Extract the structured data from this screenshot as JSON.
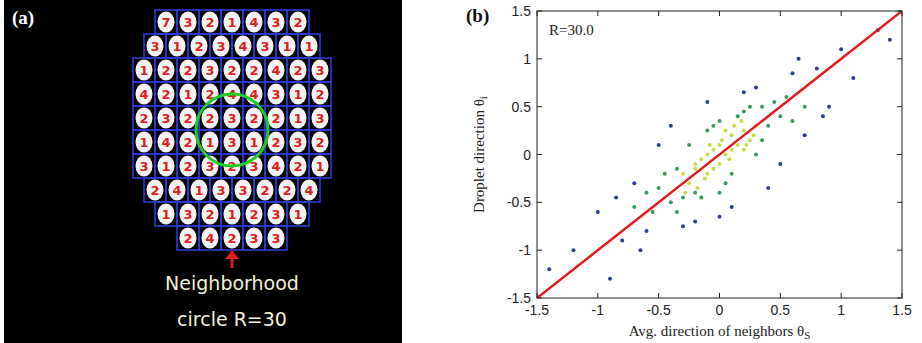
{
  "panel_a": {
    "panel_label": "(a)",
    "caption_lines": [
      "Neighborhood",
      "circle R=30"
    ],
    "droplet_labels": [
      "7",
      "3",
      "2",
      "1",
      "4",
      "3",
      "2",
      "3",
      "1",
      "2",
      "3",
      "4",
      "3",
      "1",
      "1",
      "1",
      "2",
      "2",
      "3",
      "2",
      "2",
      "4",
      "2",
      "3",
      "4",
      "2",
      "1",
      "2",
      "4",
      "4",
      "3",
      "1",
      "2",
      "2",
      "3",
      "2",
      "2",
      "3",
      "2",
      "2",
      "1",
      "3",
      "1",
      "4",
      "2",
      "1",
      "3",
      "1",
      "2",
      "3",
      "2",
      "3",
      "1",
      "2",
      "3",
      "2",
      "3",
      "4",
      "2",
      "1",
      "2",
      "4",
      "1",
      "3",
      "3",
      "2",
      "2",
      "4",
      "1",
      "3",
      "2",
      "1",
      "2",
      "3",
      "1",
      "2",
      "4",
      "2",
      "3",
      "3"
    ]
  },
  "chart_data": {
    "type": "scatter",
    "panel_label": "(b)",
    "annotation": "R=30.0",
    "xlabel": "Avg. direction of neighbors θ",
    "xlabel_sub": "S",
    "ylabel": "Droplet direction θ",
    "ylabel_sub": "i",
    "xlim": [
      -1.5,
      1.5
    ],
    "ylim": [
      -1.5,
      1.5
    ],
    "xticks": [
      -1.5,
      -1,
      -0.5,
      0,
      0.5,
      1,
      1.5
    ],
    "yticks": [
      -1.5,
      -1,
      -0.5,
      0,
      0.5,
      1,
      1.5
    ],
    "grid": false,
    "series": [
      {
        "type": "scatter",
        "marker": "dot",
        "color": "#2b3f93",
        "x": [
          -1.2,
          -1.0,
          -0.9,
          -0.8,
          -0.7,
          -0.6,
          -0.5,
          -0.3,
          -0.1,
          0.1,
          0.3,
          0.5,
          0.6,
          0.7,
          0.8,
          0.9,
          1.0,
          1.1,
          1.3,
          1.4,
          -0.4,
          0.4,
          -0.2,
          0.2,
          0,
          -1.4,
          0.85,
          -0.85,
          0.65,
          -0.65
        ],
        "values": [
          -1.0,
          -0.6,
          -1.3,
          -0.9,
          -0.3,
          -0.8,
          0.1,
          -0.75,
          0.55,
          -0.55,
          0.7,
          -0.1,
          0.85,
          0.2,
          0.9,
          0.5,
          1.1,
          0.8,
          1.3,
          1.2,
          0.3,
          -0.35,
          -0.7,
          0.65,
          -0.65,
          -1.2,
          0.4,
          -0.45,
          1.0,
          -1.0
        ]
      },
      {
        "type": "scatter",
        "marker": "dot",
        "color": "#3a9a5c",
        "x": [
          -0.5,
          -0.4,
          -0.35,
          -0.3,
          -0.2,
          -0.1,
          0,
          0.1,
          0.2,
          0.3,
          0.35,
          0.4,
          0.5,
          0.55,
          -0.45,
          -0.55,
          0.45,
          0.6,
          -0.6,
          0.25,
          -0.25,
          0.15,
          -0.15,
          0.05,
          -0.05,
          0.7,
          -0.7,
          0.35,
          -0.35,
          0
        ],
        "values": [
          -0.35,
          -0.5,
          -0.15,
          -0.45,
          -0.4,
          0.25,
          0.35,
          -0.2,
          0.45,
          0,
          0.5,
          0.3,
          0.4,
          0.6,
          -0.2,
          -0.6,
          0.55,
          0.35,
          -0.4,
          0.5,
          0.1,
          0.4,
          -0.45,
          -0.3,
          0.3,
          0.5,
          -0.55,
          0.15,
          -0.6,
          -0.4
        ]
      },
      {
        "type": "scatter",
        "marker": "dot",
        "color": "#c8dc46",
        "x": [
          -0.2,
          -0.15,
          -0.1,
          -0.05,
          0,
          0.05,
          0.1,
          0.15,
          0.2,
          0.25,
          -0.25,
          0,
          0.1,
          -0.1,
          0.05,
          -0.05,
          0.2,
          -0.2,
          0.3,
          -0.3,
          0.12,
          -0.12,
          0.02,
          0.08,
          -0.08,
          0.18,
          -0.18,
          0.22,
          0.28,
          -0.28
        ],
        "values": [
          -0.15,
          -0.05,
          -0.2,
          0.05,
          0.1,
          0,
          0.2,
          0.1,
          0.25,
          0.15,
          -0.3,
          -0.1,
          0.05,
          0,
          0.25,
          -0.15,
          0.05,
          -0.1,
          0.3,
          -0.2,
          0.3,
          -0.25,
          0.15,
          -0.05,
          0.1,
          0.35,
          -0.35,
          0.1,
          0.2,
          -0.4
        ]
      },
      {
        "type": "line",
        "line_style": "solid",
        "color": "#e41a1c",
        "x": [
          -1.5,
          1.5
        ],
        "values": [
          -1.5,
          1.5
        ]
      }
    ]
  }
}
